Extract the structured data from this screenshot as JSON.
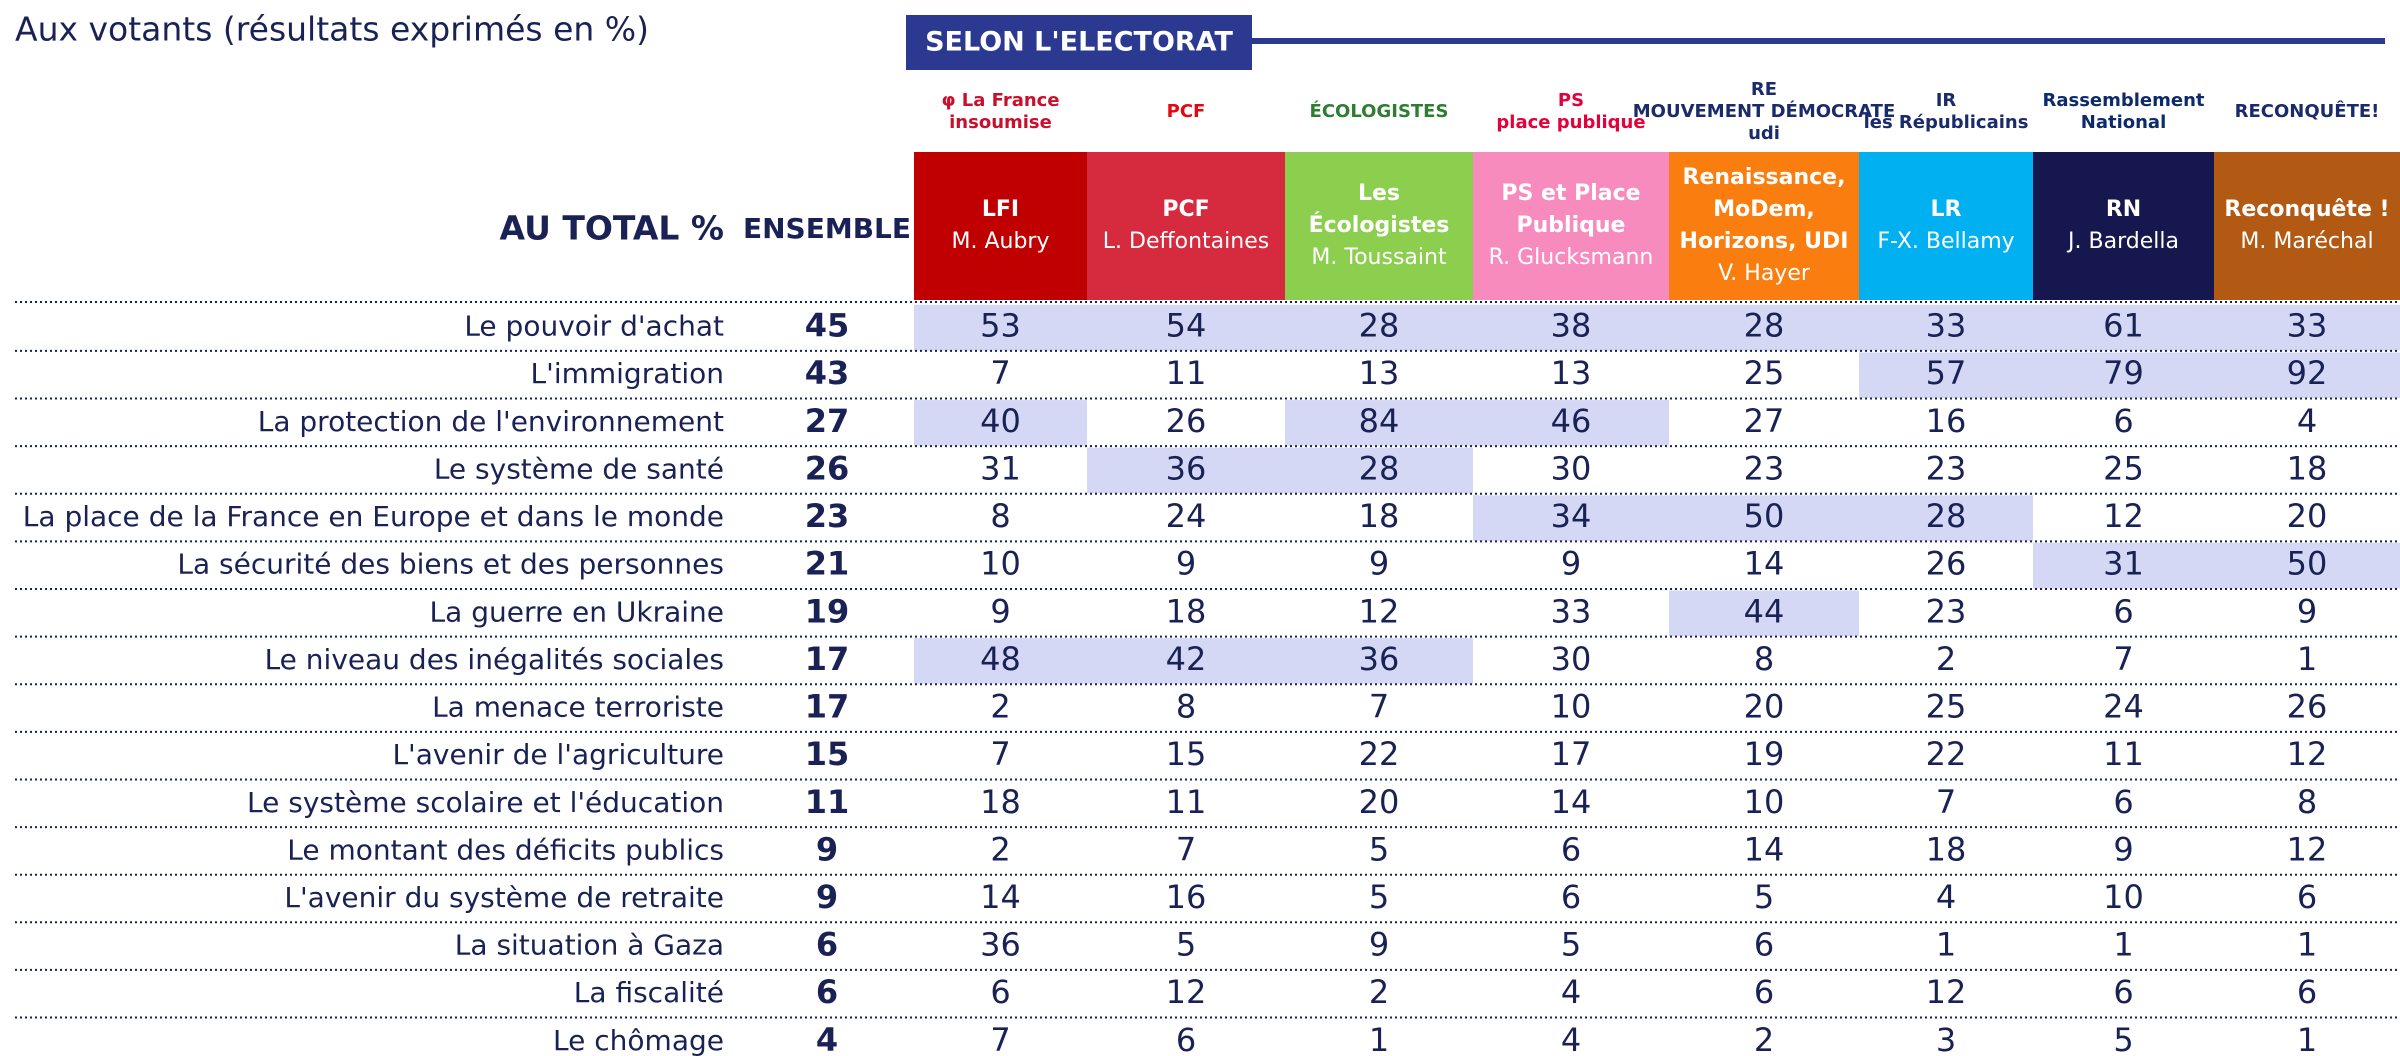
{
  "subtitle": "Aux votants (résultats exprimés en %)",
  "banner": "SELON L'ELECTORAT",
  "table": {
    "total_header": "AU TOTAL %",
    "ensemble_header": "ENSEMBLE",
    "parties": [
      {
        "logo": [
          "φ La France",
          "insoumise"
        ],
        "name": [
          "LFI"
        ],
        "leader": "M. Aubry",
        "color": "#c00000",
        "logo_color": "#c8102e"
      },
      {
        "logo": [
          "PCF"
        ],
        "name": [
          "PCF"
        ],
        "leader": "L. Deffontaines",
        "color": "#d62a3e",
        "logo_color": "#e30613"
      },
      {
        "logo": [
          "ÉCOLOGISTES"
        ],
        "name": [
          "Les",
          "Écologistes"
        ],
        "leader": "M. Toussaint",
        "color": "#8ccf4e",
        "logo_color": "#2e7d32"
      },
      {
        "logo": [
          "PS",
          "place publique"
        ],
        "name": [
          "PS et Place",
          "Publique"
        ],
        "leader": "R. Glucksmann",
        "color": "#f78bbe",
        "logo_color": "#e4003a"
      },
      {
        "logo": [
          "RE",
          "MOUVEMENT DÉMOCRATE",
          "udi"
        ],
        "name": [
          "Renaissance,",
          "MoDem,",
          "Horizons, UDI"
        ],
        "leader": "V. Hayer",
        "color": "#f97e0f",
        "logo_color": "#1b2a6b"
      },
      {
        "logo": [
          "IR",
          "les Républicains"
        ],
        "name": [
          "LR"
        ],
        "leader": "F-X. Bellamy",
        "color": "#00b0f0",
        "logo_color": "#1b2a6b"
      },
      {
        "logo": [
          "Rassemblement",
          "National"
        ],
        "name": [
          "RN"
        ],
        "leader": "J. Bardella",
        "color": "#16174f",
        "logo_color": "#0d2a6b"
      },
      {
        "logo": [
          "RECONQUÊTE!"
        ],
        "name": [
          "Reconquête !"
        ],
        "leader": "M. Maréchal",
        "color": "#b25a14",
        "logo_color": "#1b2a6b"
      }
    ],
    "highlight_color": "#d4d8f5",
    "rows": [
      {
        "label": "Le pouvoir d'achat",
        "total": 45,
        "values": [
          53,
          54,
          28,
          38,
          28,
          33,
          61,
          33
        ],
        "highlighted": [
          0,
          1,
          2,
          3,
          4,
          5,
          6,
          7
        ]
      },
      {
        "label": "L'immigration",
        "total": 43,
        "values": [
          7,
          11,
          13,
          13,
          25,
          57,
          79,
          92
        ],
        "highlighted": [
          5,
          6,
          7
        ]
      },
      {
        "label": "La protection de l'environnement",
        "total": 27,
        "values": [
          40,
          26,
          84,
          46,
          27,
          16,
          6,
          4
        ],
        "highlighted": [
          0,
          2,
          3
        ]
      },
      {
        "label": "Le système de santé",
        "total": 26,
        "values": [
          31,
          36,
          28,
          30,
          23,
          23,
          25,
          18
        ],
        "highlighted": [
          1,
          2
        ]
      },
      {
        "label": "La place de la France en Europe et dans le monde",
        "total": 23,
        "values": [
          8,
          24,
          18,
          34,
          50,
          28,
          12,
          20
        ],
        "highlighted": [
          3,
          4,
          5
        ]
      },
      {
        "label": "La sécurité des biens et des personnes",
        "total": 21,
        "values": [
          10,
          9,
          9,
          9,
          14,
          26,
          31,
          50
        ],
        "highlighted": [
          6,
          7
        ]
      },
      {
        "label": "La guerre en Ukraine",
        "total": 19,
        "values": [
          9,
          18,
          12,
          33,
          44,
          23,
          6,
          9
        ],
        "highlighted": [
          4
        ]
      },
      {
        "label": "Le niveau des inégalités sociales",
        "total": 17,
        "values": [
          48,
          42,
          36,
          30,
          8,
          2,
          7,
          1
        ],
        "highlighted": [
          0,
          1,
          2
        ]
      },
      {
        "label": "La menace terroriste",
        "total": 17,
        "values": [
          2,
          8,
          7,
          10,
          20,
          25,
          24,
          26
        ],
        "highlighted": []
      },
      {
        "label": "L'avenir de l'agriculture",
        "total": 15,
        "values": [
          7,
          15,
          22,
          17,
          19,
          22,
          11,
          12
        ],
        "highlighted": []
      },
      {
        "label": "Le système scolaire et l'éducation",
        "total": 11,
        "values": [
          18,
          11,
          20,
          14,
          10,
          7,
          6,
          8
        ],
        "highlighted": []
      },
      {
        "label": "Le montant des déficits publics",
        "total": 9,
        "values": [
          2,
          7,
          5,
          6,
          14,
          18,
          9,
          12
        ],
        "highlighted": []
      },
      {
        "label": "L'avenir du système de retraite",
        "total": 9,
        "values": [
          14,
          16,
          5,
          6,
          5,
          4,
          10,
          6
        ],
        "highlighted": []
      },
      {
        "label": "La situation à Gaza",
        "total": 6,
        "values": [
          36,
          5,
          9,
          5,
          6,
          1,
          1,
          1
        ],
        "highlighted": []
      },
      {
        "label": "La fiscalité",
        "total": 6,
        "values": [
          6,
          12,
          2,
          4,
          6,
          12,
          6,
          6
        ],
        "highlighted": []
      },
      {
        "label": "Le chômage",
        "total": 4,
        "values": [
          7,
          6,
          1,
          4,
          2,
          3,
          5,
          1
        ],
        "highlighted": []
      }
    ]
  }
}
